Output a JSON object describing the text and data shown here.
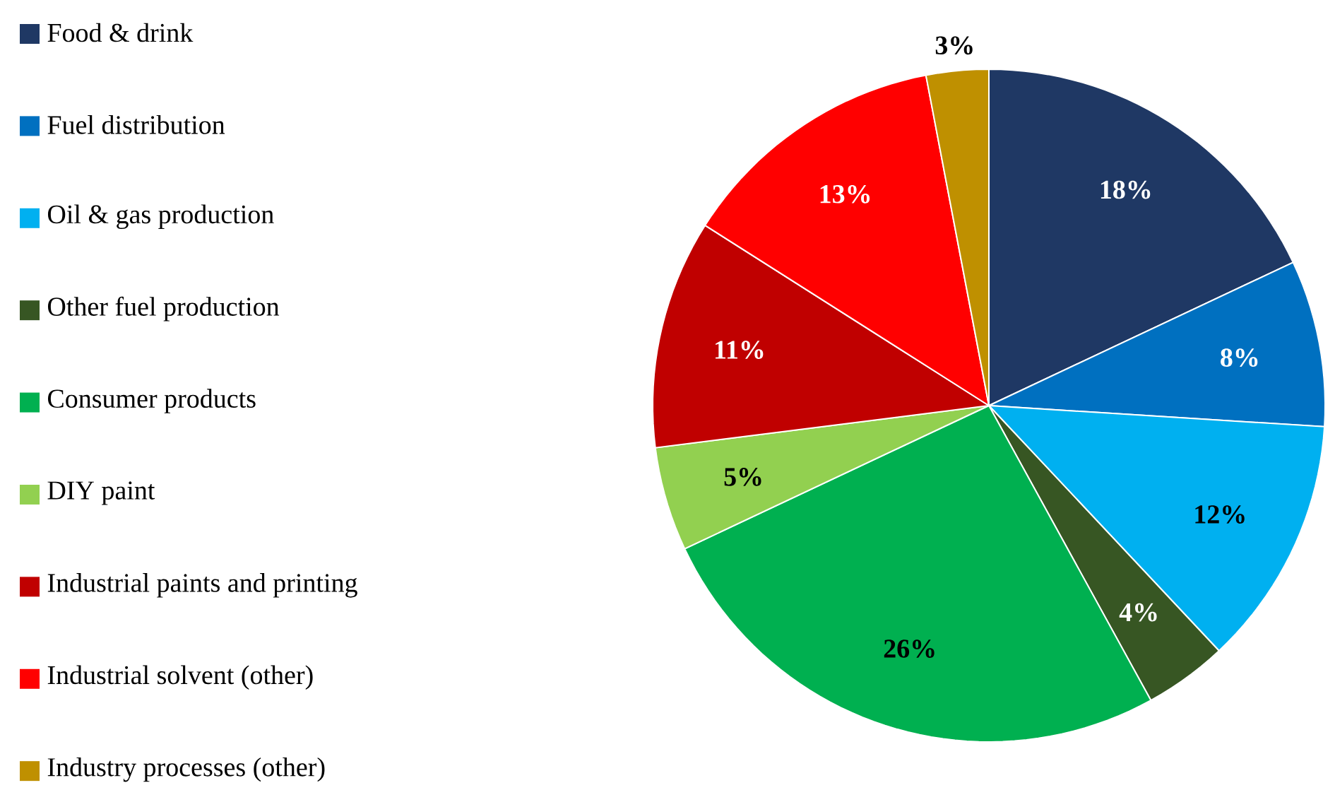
{
  "chart_data": {
    "type": "pie",
    "categories": [
      "Food & drink",
      "Fuel distribution",
      "Oil & gas production",
      "Other fuel production",
      "Consumer products",
      "DIY paint",
      "Industrial paints and printing",
      "Industrial solvent (other)",
      "Industry processes (other)"
    ],
    "values": [
      18,
      8,
      12,
      4,
      26,
      5,
      11,
      13,
      3
    ],
    "value_labels": [
      "18%",
      "8%",
      "12%",
      "4%",
      "26%",
      "5%",
      "11%",
      "13%",
      "3%"
    ],
    "colors": [
      "#1f3864",
      "#0070c0",
      "#00b0f0",
      "#375623",
      "#00b050",
      "#92d050",
      "#c00000",
      "#ff0000",
      "#bf9000"
    ],
    "legend": "left"
  }
}
